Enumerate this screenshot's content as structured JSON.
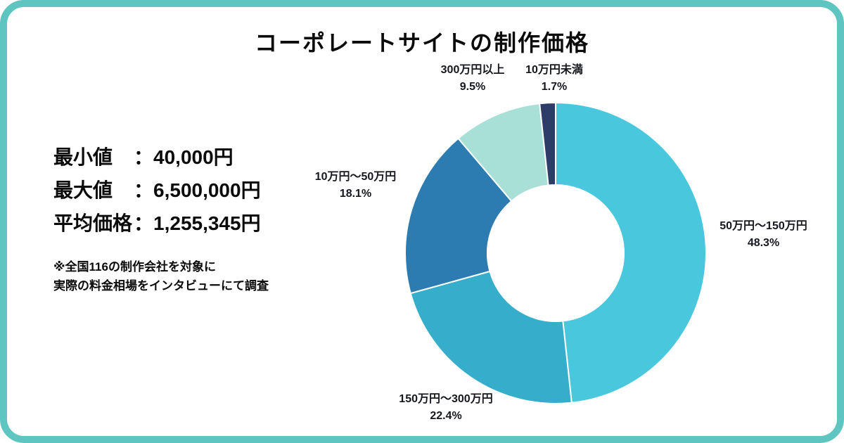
{
  "frame_color": "#5ec5c1",
  "title": "コーポレートサイトの制作価格",
  "stats": {
    "colon": "：",
    "rows": [
      {
        "label": "最小値",
        "value": "40,000円"
      },
      {
        "label": "最大値",
        "value": "6,500,000円"
      },
      {
        "label": "平均価格",
        "value": "1,255,345円"
      }
    ]
  },
  "note": {
    "line1": "※全国116の制作会社を対象に",
    "line2": "実際の料金相場をインタビューにて調査"
  },
  "chart_data": {
    "type": "pie",
    "donut": true,
    "title": "コーポレートサイトの制作価格",
    "start_angle_deg": 0,
    "direction": "clockwise",
    "total_pct": 100,
    "slices": [
      {
        "label": "50万円〜150万円",
        "pct": 48.3,
        "pct_label": "48.3%",
        "color": "#49c7dd"
      },
      {
        "label": "150万円〜300万円",
        "pct": 22.4,
        "pct_label": "22.4%",
        "color": "#36adca"
      },
      {
        "label": "10万円〜50万円",
        "pct": 18.1,
        "pct_label": "18.1%",
        "color": "#2c7cb2"
      },
      {
        "label": "300万円以上",
        "pct": 9.5,
        "pct_label": "9.5%",
        "color": "#a8dfd7"
      },
      {
        "label": "10万円未満",
        "pct": 1.7,
        "pct_label": "1.7%",
        "color": "#2d3c68"
      }
    ]
  }
}
